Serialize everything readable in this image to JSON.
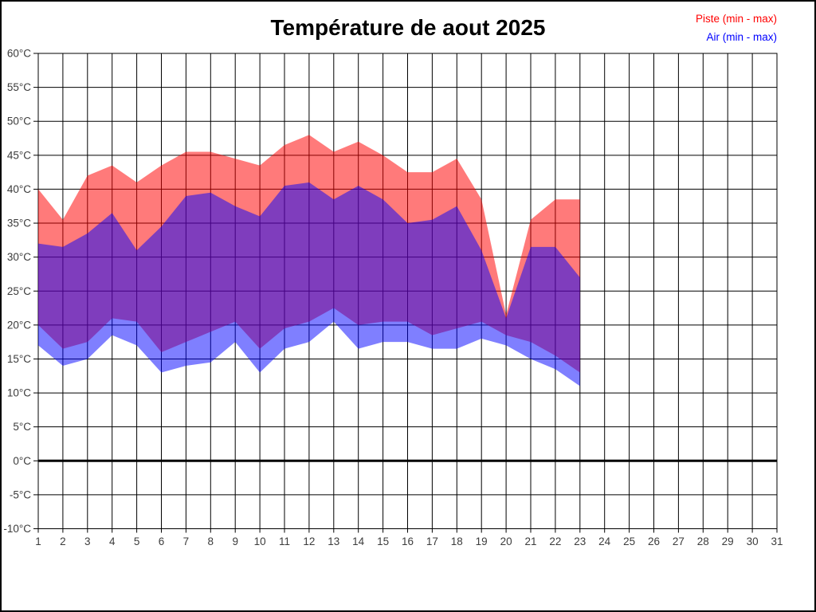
{
  "chart_data": {
    "type": "area",
    "title": "Température de aout 2025",
    "xlim": [
      1,
      31
    ],
    "ylim": [
      -10,
      60
    ],
    "y_tick_step": 5,
    "y_tick_labels": [
      "60°C",
      "55°C",
      "50°C",
      "45°C",
      "40°C",
      "35°C",
      "30°C",
      "25°C",
      "20°C",
      "15°C",
      "10°C",
      "5°C",
      "0°C",
      "-5°C",
      "-10°C"
    ],
    "x_ticks": [
      1,
      2,
      3,
      4,
      5,
      6,
      7,
      8,
      9,
      10,
      11,
      12,
      13,
      14,
      15,
      16,
      17,
      18,
      19,
      20,
      21,
      22,
      23,
      24,
      25,
      26,
      27,
      28,
      29,
      30,
      31
    ],
    "grid": true,
    "zero_line_value": 0,
    "legend_position": "top-right",
    "days": [
      1,
      2,
      3,
      4,
      5,
      6,
      7,
      8,
      9,
      10,
      11,
      12,
      13,
      14,
      15,
      16,
      17,
      18,
      19,
      20,
      21,
      22,
      23
    ],
    "series": [
      {
        "name": "Piste (min - max)",
        "color": "#ff0000",
        "fill_opacity": 0.52,
        "max": [
          40,
          35.5,
          42,
          43.5,
          41,
          43.5,
          45.5,
          45.5,
          44.5,
          43.5,
          46.5,
          48,
          45.5,
          47,
          45,
          42.5,
          42.5,
          44.5,
          38.5,
          21.5,
          35.5,
          38.5,
          38.5
        ],
        "min": [
          20,
          16.5,
          17.5,
          21,
          20.5,
          16,
          17.5,
          19,
          20.5,
          16.5,
          19.5,
          20.5,
          22.5,
          20,
          20.5,
          20.5,
          18.5,
          19.5,
          20.5,
          18.5,
          17.5,
          15.5,
          13
        ]
      },
      {
        "name": "Air (min - max)",
        "color": "#0000ff",
        "fill_opacity": 0.5,
        "max": [
          32,
          31.5,
          33.5,
          36.5,
          31,
          34.5,
          39,
          39.5,
          37.5,
          36,
          40.5,
          41,
          38.5,
          40.5,
          38.5,
          35,
          35.5,
          37.5,
          31,
          21,
          31.5,
          31.5,
          27
        ],
        "min": [
          17,
          14,
          15,
          18.5,
          17,
          13,
          14,
          14.5,
          17.5,
          13,
          16.5,
          17.5,
          20.5,
          16.5,
          17.5,
          17.5,
          16.5,
          16.5,
          18,
          17,
          15,
          13.5,
          11
        ]
      }
    ],
    "axis_text_color": "#3c3c3c",
    "grid_color": "#000000"
  }
}
